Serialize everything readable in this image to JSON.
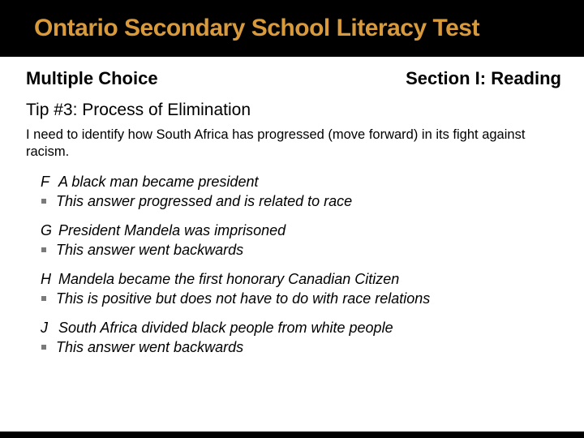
{
  "colors": {
    "background": "#000000",
    "title": "#d89a3a",
    "content_bg": "#ffffff",
    "text": "#000000",
    "bullet": "#7a7a7a"
  },
  "typography": {
    "title_fontsize": 30,
    "header_fontsize": 22,
    "tip_fontsize": 21,
    "prompt_fontsize": 16.5,
    "choice_fontsize": 18
  },
  "title": "Ontario Secondary School Literacy Test",
  "header": {
    "left": "Multiple Choice",
    "right": "Section I: Reading"
  },
  "tip": "Tip #3: Process of Elimination",
  "prompt": "I need to identify how South Africa has progressed (move forward) in its fight against racism.",
  "choices": [
    {
      "letter": "F",
      "text": "A black man became president",
      "note": "This answer progressed and is related to race"
    },
    {
      "letter": "G",
      "text": "President Mandela was imprisoned",
      "note": "This answer went backwards"
    },
    {
      "letter": "H",
      "text": "Mandela became the first honorary Canadian Citizen",
      "note": "This is positive but does not have to do with race relations"
    },
    {
      "letter": "J",
      "text": "South Africa divided black people from white people",
      "note": "This answer went backwards"
    }
  ]
}
